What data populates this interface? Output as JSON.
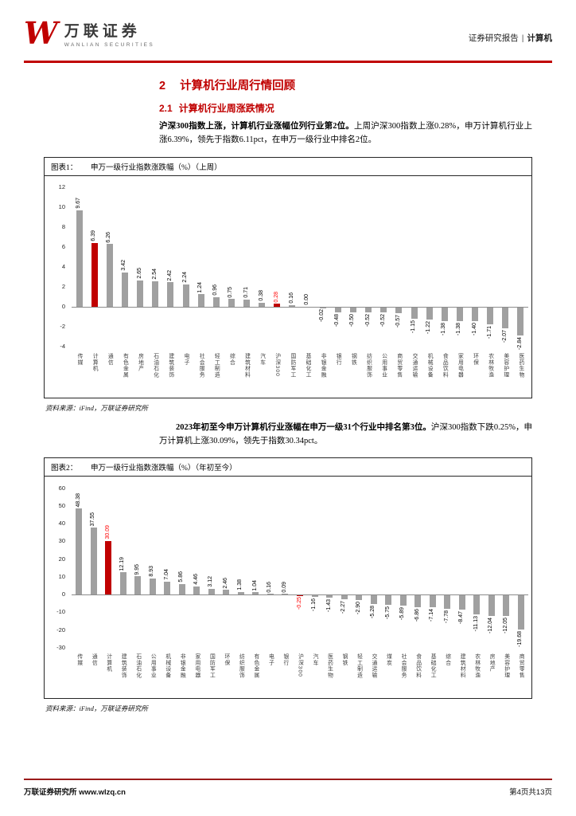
{
  "header": {
    "logo_letter": "W",
    "brand_cn": "万联证券",
    "brand_en": "WANLIAN SECURITIES",
    "report_type": "证券研究报告",
    "divider": "|",
    "industry": "计算机"
  },
  "section": {
    "number": "2",
    "title": "计算机行业周行情回顾"
  },
  "subsection": {
    "number": "2.1",
    "title": "计算机行业周涨跌情况"
  },
  "paragraphs": {
    "p1_lead": "沪深300指数上涨，计算机行业涨幅位列行业第2位。",
    "p1_rest": "上周沪深300指数上涨0.28%，申万计算机行业上涨6.39%，领先于指数6.11pct，在申万一级行业中排名2位。",
    "p2_lead": "2023年初至今申万计算机行业涨幅在申万一级31个行业中排名第3位。",
    "p2_rest": "沪深300指数下跌0.25%，申万计算机上涨30.09%，领先于指数30.34pct。"
  },
  "figures": {
    "fig1": {
      "label": "图表1：",
      "title": "申万一级行业指数涨跌幅（%）（上周）",
      "source": "资料来源：iFind，万联证券研究所"
    },
    "fig2": {
      "label": "图表2：",
      "title": "申万一级行业指数涨跌幅（%）（年初至今）",
      "source": "资料来源：iFind，万联证券研究所"
    }
  },
  "footer": {
    "left": "万联证券研究所 www.wlzq.cn",
    "right": "第4页共13页"
  },
  "colors": {
    "accent_red": "#c00000",
    "bar_gray": "#a0a0a0",
    "value_red": "#ff0000"
  },
  "chart_data": [
    {
      "type": "bar",
      "title": "申万一级行业指数涨跌幅（%）（上周）",
      "xlabel": "",
      "ylabel": "",
      "ylim": [
        -4,
        12
      ],
      "yticks": [
        12,
        10,
        8,
        6,
        4,
        2,
        0,
        -2,
        -4
      ],
      "grid": false,
      "legend": "none",
      "categories": [
        "传媒",
        "计算机",
        "通信",
        "有色金属",
        "房地产",
        "石油石化",
        "建筑装饰",
        "电子",
        "社会服务",
        "轻工制造",
        "综合",
        "建筑材料",
        "汽车",
        "沪深300",
        "国防军工",
        "基础化工",
        "非银金融",
        "银行",
        "钢铁",
        "纺织服饰",
        "公用事业",
        "商贸零售",
        "交通运输",
        "机械设备",
        "食品饮料",
        "家用电器",
        "环保",
        "农林牧渔",
        "美容护理",
        "医药生物"
      ],
      "values": [
        9.67,
        6.39,
        6.26,
        3.42,
        2.65,
        2.54,
        2.42,
        2.24,
        1.24,
        0.96,
        0.75,
        0.71,
        0.38,
        0.28,
        0.16,
        0.0,
        -0.02,
        -0.48,
        -0.5,
        -0.52,
        -0.52,
        -0.57,
        -1.15,
        -1.22,
        -1.38,
        -1.38,
        -1.4,
        -1.71,
        -2.07,
        -2.84
      ],
      "bar_color": "#a0a0a0",
      "highlight_color": "#c00000",
      "highlight_bars": [
        "计算机",
        "沪深300"
      ],
      "highlight_indices": [
        1,
        13
      ],
      "red_value_label_indices": [
        13
      ]
    },
    {
      "type": "bar",
      "title": "申万一级行业指数涨跌幅（%）（年初至今）",
      "xlabel": "",
      "ylabel": "",
      "ylim": [
        -30,
        60
      ],
      "yticks": [
        60,
        50,
        40,
        30,
        20,
        10,
        0,
        -10,
        -20,
        -30
      ],
      "grid": false,
      "legend": "none",
      "categories": [
        "传媒",
        "通信",
        "计算机",
        "建筑装饰",
        "石油石化",
        "公用事业",
        "机械设备",
        "非银金融",
        "家用电器",
        "国防军工",
        "环保",
        "纺织服饰",
        "有色金属",
        "电子",
        "银行",
        "沪深300",
        "汽车",
        "医药生物",
        "钢铁",
        "轻工制造",
        "交通运输",
        "煤炭",
        "社会服务",
        "食品饮料",
        "基础化工",
        "综合",
        "建筑材料",
        "农林牧渔",
        "房地产",
        "美容护理",
        "商贸零售"
      ],
      "values": [
        48.38,
        37.55,
        30.09,
        12.19,
        9.95,
        8.93,
        7.04,
        5.86,
        4.46,
        3.12,
        2.46,
        1.38,
        1.04,
        0.16,
        0.09,
        -0.25,
        -1.16,
        -1.43,
        -2.27,
        -2.9,
        -5.28,
        -5.75,
        -5.89,
        -6.86,
        -7.14,
        -7.78,
        -8.47,
        -11.13,
        -12.04,
        -12.05,
        -19.68
      ],
      "bar_color": "#a0a0a0",
      "highlight_color": "#c00000",
      "highlight_bars": [
        "计算机",
        "沪深300"
      ],
      "highlight_indices": [
        2,
        15
      ],
      "red_value_label_indices": [
        2,
        15
      ]
    }
  ]
}
